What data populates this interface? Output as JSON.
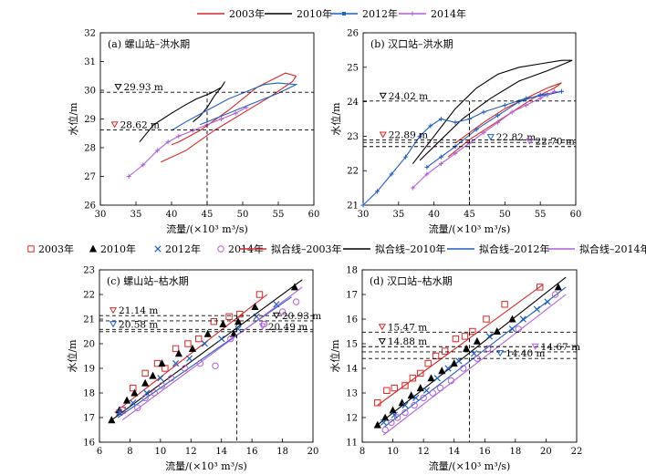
{
  "legend_top": [
    {
      "label": "2003年",
      "color": "#d62728"
    },
    {
      "label": "2010年",
      "color": "#000000"
    },
    {
      "label": "2012年",
      "color": "#1f5fbf"
    },
    {
      "label": "2014年",
      "color": "#b15fd6"
    }
  ],
  "legend_mid": [
    {
      "label": "2003年",
      "marker": "square",
      "color": "#d62728"
    },
    {
      "label": "2010年",
      "marker": "triangle",
      "color": "#000000"
    },
    {
      "label": "2012年",
      "marker": "x",
      "color": "#1f5fbf"
    },
    {
      "label": "2014年",
      "marker": "circle",
      "color": "#b15fd6"
    },
    {
      "label": "拟合线–2003年",
      "marker": "line",
      "color": "#d62728"
    },
    {
      "label": "拟合线–2010年",
      "marker": "line",
      "color": "#000000"
    },
    {
      "label": "拟合线–2012年",
      "marker": "line",
      "color": "#1f5fbf"
    },
    {
      "label": "拟合线–2014年",
      "marker": "line",
      "color": "#b15fd6"
    }
  ],
  "chart_data": [
    {
      "id": "a",
      "type": "line",
      "title": "(a) 螺山站–洪水期",
      "xlabel": "流量/(×10³ m³/s)",
      "ylabel": "水位/m",
      "xlim": [
        30,
        60
      ],
      "ylim": [
        26,
        32
      ],
      "xticks": [
        30,
        35,
        40,
        45,
        50,
        55,
        60
      ],
      "yticks": [
        26,
        27,
        28,
        29,
        30,
        31,
        32
      ],
      "ref_x": 45,
      "annotations": [
        {
          "text": "29.93 m",
          "y": 29.93,
          "marker_x": 32.5,
          "color": "#000000"
        },
        {
          "text": "28.62 m",
          "y": 28.62,
          "marker_x": 32.0,
          "color": "#d62728"
        }
      ],
      "series": [
        {
          "name": "2003年",
          "color": "#d62728",
          "marker": "none",
          "x": [
            38.5,
            42,
            46,
            50,
            54,
            57,
            57.5,
            56,
            52,
            48,
            44,
            41,
            40
          ],
          "y": [
            27.5,
            27.9,
            28.6,
            29.2,
            29.8,
            30.3,
            30.5,
            30.6,
            30.1,
            29.3,
            28.6,
            28.2,
            28.1
          ]
        },
        {
          "name": "2010年",
          "color": "#000000",
          "marker": "none",
          "x": [
            35.5,
            37.5,
            40,
            42,
            43.5,
            45.5,
            47,
            47.5,
            47,
            46,
            45,
            44,
            43
          ],
          "y": [
            28.2,
            28.8,
            29.2,
            29.5,
            29.7,
            29.9,
            30.1,
            30.3,
            30.1,
            29.8,
            29.4,
            29.1,
            28.9
          ]
        },
        {
          "name": "2012年",
          "color": "#1f5fbf",
          "marker": "none",
          "x": [
            40,
            42,
            45,
            48,
            51,
            53,
            55,
            57.5,
            55,
            52,
            49,
            46,
            44
          ],
          "y": [
            28.6,
            28.9,
            29.3,
            29.7,
            30.0,
            30.2,
            30.25,
            30.2,
            29.9,
            29.6,
            29.3,
            29.0,
            28.8
          ]
        },
        {
          "name": "2014年",
          "color": "#b15fd6",
          "marker": "plus",
          "x": [
            34,
            36,
            38,
            39.5,
            41,
            43,
            45,
            47,
            49,
            50.5
          ],
          "y": [
            27.0,
            27.4,
            27.9,
            28.2,
            28.4,
            28.6,
            28.8,
            29.0,
            29.2,
            29.4
          ]
        }
      ]
    },
    {
      "id": "b",
      "type": "line",
      "title": "(b) 汉口站–洪水期",
      "xlabel": "流量/(×10³ m³/s)",
      "ylabel": "水位/m",
      "xlim": [
        30,
        60
      ],
      "ylim": [
        21,
        26
      ],
      "xticks": [
        30,
        35,
        40,
        45,
        50,
        55,
        60
      ],
      "yticks": [
        21,
        22,
        23,
        24,
        25,
        26
      ],
      "ref_x": 45,
      "annotations": [
        {
          "text": "24.02 m",
          "y": 24.02,
          "marker_x": 32.8,
          "color": "#000000"
        },
        {
          "text": "22.89 m",
          "y": 22.89,
          "marker_x": 32.8,
          "color": "#d62728"
        },
        {
          "text": "22.82 m",
          "y": 22.82,
          "marker_x": 48.0,
          "color": "#1f5fbf"
        },
        {
          "text": "22.70 m",
          "y": 22.7,
          "marker_x": 53.5,
          "color": "#b15fd6"
        }
      ],
      "series": [
        {
          "name": "2003年",
          "color": "#d62728",
          "marker": "none",
          "x": [
            42,
            45,
            48,
            51,
            54,
            57,
            58,
            56,
            53,
            50,
            47,
            45,
            43
          ],
          "y": [
            22.4,
            22.9,
            23.3,
            23.7,
            24.1,
            24.4,
            24.55,
            24.4,
            24.1,
            23.8,
            23.4,
            23.1,
            22.8
          ]
        },
        {
          "name": "2010年",
          "color": "#000000",
          "marker": "none",
          "x": [
            37,
            40,
            43,
            46,
            49,
            52,
            55,
            58,
            59.5,
            56,
            52,
            48,
            44,
            41,
            38
          ],
          "y": [
            22.2,
            23.0,
            23.8,
            24.4,
            24.8,
            25.0,
            25.1,
            25.2,
            25.2,
            24.9,
            24.6,
            24.1,
            23.5,
            22.9,
            22.3
          ]
        },
        {
          "name": "2012年",
          "color": "#1f5fbf",
          "marker": "plus",
          "x": [
            30,
            32,
            34,
            36,
            38,
            39.5,
            41,
            43,
            45,
            47,
            50,
            53,
            56,
            58,
            55,
            52,
            49,
            46,
            43,
            41,
            39
          ],
          "y": [
            21.0,
            21.4,
            21.9,
            22.4,
            23.0,
            23.3,
            23.5,
            23.4,
            23.5,
            23.7,
            23.9,
            24.1,
            24.2,
            24.3,
            24.2,
            24.0,
            23.6,
            23.2,
            22.7,
            22.4,
            22.1
          ]
        },
        {
          "name": "2014年",
          "color": "#b15fd6",
          "marker": "plus",
          "x": [
            37,
            39,
            41,
            43,
            45,
            47,
            49,
            51,
            53,
            55,
            57
          ],
          "y": [
            21.5,
            21.9,
            22.2,
            22.5,
            22.8,
            23.1,
            23.4,
            23.7,
            23.9,
            24.1,
            24.3
          ]
        }
      ]
    },
    {
      "id": "c",
      "type": "scatter",
      "title": "(c) 螺山站–枯水期",
      "xlabel": "流量/(×10³ m³/s)",
      "ylabel": "水位/m",
      "xlim": [
        6,
        20
      ],
      "ylim": [
        16,
        23
      ],
      "xticks": [
        6,
        8,
        10,
        12,
        14,
        16,
        18,
        20
      ],
      "yticks": [
        16,
        17,
        18,
        19,
        20,
        21,
        22,
        23
      ],
      "ref_x": 15,
      "annotations": [
        {
          "text": "21.14 m",
          "y": 21.14,
          "marker_x": 6.9,
          "color": "#d62728"
        },
        {
          "text": "20.93 m",
          "y": 20.93,
          "marker_x": 17.6,
          "color": "#000000"
        },
        {
          "text": "20.58 m",
          "y": 20.58,
          "marker_x": 6.9,
          "color": "#1f5fbf"
        },
        {
          "text": "20.49 m",
          "y": 20.49,
          "marker_x": 16.7,
          "color": "#b15fd6"
        }
      ],
      "series": [
        {
          "name": "2003年",
          "color": "#d62728",
          "marker": "square",
          "x": [
            7.5,
            8.2,
            9.0,
            9.8,
            10.3,
            11.0,
            11.8,
            12.5,
            13.5,
            14.5,
            15.2,
            16.5
          ],
          "y": [
            17.3,
            18.2,
            18.8,
            19.2,
            19.0,
            19.8,
            20.0,
            20.2,
            20.9,
            21.1,
            21.2,
            22.0
          ],
          "fit_x": [
            7,
            17
          ],
          "fit_y": [
            17.2,
            22.0
          ]
        },
        {
          "name": "2010年",
          "color": "#000000",
          "marker": "triangle",
          "x": [
            6.8,
            7.3,
            7.8,
            8.3,
            9.0,
            9.5,
            10.1,
            11.2,
            12.1,
            13.1,
            14.1,
            14.8,
            15.1,
            16.2,
            18.8
          ],
          "y": [
            16.9,
            17.3,
            17.7,
            18.0,
            18.4,
            18.7,
            19.2,
            19.6,
            19.8,
            20.4,
            20.8,
            20.4,
            20.9,
            21.5,
            22.3
          ],
          "fit_x": [
            6.8,
            19.3
          ],
          "fit_y": [
            16.9,
            22.6
          ]
        },
        {
          "name": "2012年",
          "color": "#1f5fbf",
          "marker": "x",
          "x": [
            7.3,
            8.2,
            9.1,
            10.0,
            11.0,
            11.9,
            12.9,
            14.0,
            15.1,
            16.3,
            17.6
          ],
          "y": [
            17.2,
            17.6,
            18.0,
            18.6,
            19.2,
            19.4,
            20.0,
            20.2,
            20.6,
            21.1,
            21.6
          ],
          "fit_x": [
            7.2,
            18.6
          ],
          "fit_y": [
            17.0,
            21.9
          ]
        },
        {
          "name": "2014年",
          "color": "#b15fd6",
          "marker": "circle",
          "x": [
            7.5,
            8.5,
            9.0,
            9.6,
            10.1,
            10.7,
            11.6,
            12.6,
            13.6,
            14.6,
            16.8,
            18.0,
            18.9
          ],
          "y": [
            17.3,
            17.4,
            17.8,
            18.0,
            18.3,
            18.6,
            19.0,
            19.2,
            19.1,
            20.2,
            20.8,
            21.3,
            21.7
          ],
          "fit_x": [
            7.5,
            19.3
          ],
          "fit_y": [
            16.9,
            22.3
          ]
        }
      ]
    },
    {
      "id": "d",
      "type": "scatter",
      "title": "(d) 汉口站–枯水期",
      "xlabel": "流量/(×10³ m³/s)",
      "ylabel": "水位/m",
      "xlim": [
        8,
        22
      ],
      "ylim": [
        11,
        18
      ],
      "xticks": [
        8,
        10,
        12,
        14,
        16,
        18,
        20,
        22
      ],
      "yticks": [
        11,
        12,
        13,
        14,
        15,
        16,
        17,
        18
      ],
      "ref_x": 15,
      "annotations": [
        {
          "text": "15.47 m",
          "y": 15.47,
          "marker_x": 9.3,
          "color": "#d62728"
        },
        {
          "text": "14.88 m",
          "y": 14.88,
          "marker_x": 9.3,
          "color": "#000000"
        },
        {
          "text": "14.40 m",
          "y": 14.4,
          "marker_x": 17.0,
          "color": "#1f5fbf"
        },
        {
          "text": "14.67 m",
          "y": 14.67,
          "marker_x": 19.3,
          "color": "#b15fd6"
        }
      ],
      "series": [
        {
          "name": "2003年",
          "color": "#d62728",
          "marker": "square",
          "x": [
            9.0,
            9.6,
            10.1,
            10.8,
            11.3,
            11.8,
            12.3,
            12.8,
            13.4,
            14.1,
            14.7,
            15.2,
            16.1,
            17.3,
            19.6
          ],
          "y": [
            12.6,
            13.1,
            13.2,
            13.3,
            13.6,
            13.8,
            14.2,
            14.5,
            14.7,
            15.2,
            15.3,
            15.5,
            16.0,
            16.6,
            17.3
          ],
          "fit_x": [
            9,
            19.8
          ],
          "fit_y": [
            12.5,
            17.4
          ]
        },
        {
          "name": "2010年",
          "color": "#000000",
          "marker": "triangle",
          "x": [
            9.0,
            9.5,
            10.0,
            10.6,
            11.2,
            11.8,
            12.5,
            13.2,
            14.0,
            14.8,
            15.5,
            16.8,
            17.8,
            20.8
          ],
          "y": [
            11.7,
            12.0,
            12.3,
            12.6,
            12.9,
            13.2,
            13.6,
            13.9,
            14.2,
            14.8,
            15.1,
            15.5,
            16.0,
            17.3
          ],
          "fit_x": [
            9,
            21.3
          ],
          "fit_y": [
            11.7,
            17.7
          ]
        },
        {
          "name": "2012年",
          "color": "#1f5fbf",
          "marker": "x",
          "x": [
            9.4,
            10.1,
            10.8,
            11.5,
            12.2,
            12.9,
            13.6,
            14.3,
            15.3,
            16.3,
            17.8,
            18.5,
            19.4,
            20.1
          ],
          "y": [
            11.8,
            12.1,
            12.5,
            12.8,
            13.1,
            13.6,
            14.0,
            14.3,
            14.6,
            15.3,
            15.6,
            16.0,
            16.4,
            16.7
          ],
          "fit_x": [
            9.4,
            21.3
          ],
          "fit_y": [
            11.6,
            17.3
          ]
        },
        {
          "name": "2014年",
          "color": "#b15fd6",
          "marker": "circle",
          "x": [
            9.5,
            9.9,
            10.3,
            10.8,
            11.4,
            12.0,
            12.6,
            13.1,
            13.8,
            14.6,
            15.5,
            16.2,
            18.2,
            20.6
          ],
          "y": [
            11.5,
            11.8,
            12.0,
            12.2,
            12.5,
            12.8,
            13.0,
            13.2,
            13.5,
            14.0,
            14.4,
            14.8,
            15.6,
            17.0
          ],
          "fit_x": [
            9.4,
            21.3
          ],
          "fit_y": [
            11.3,
            17.0
          ]
        }
      ]
    }
  ]
}
